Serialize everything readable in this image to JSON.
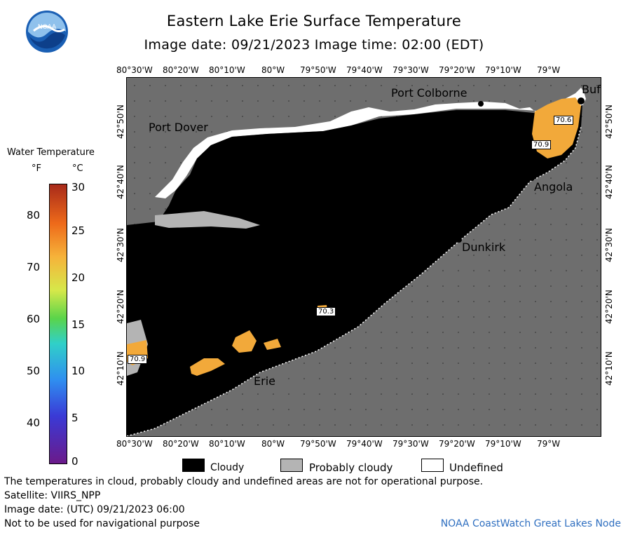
{
  "title": "Eastern Lake Erie Surface Temperature",
  "subtitle": "Image date: 09/21/2023     Image time: 02:00 (EDT)",
  "logo_text": "NOAA",
  "legend": {
    "title": "Water Temperature",
    "unit_f": "°F",
    "unit_c": "°C",
    "f_ticks": [
      "80",
      "70",
      "60",
      "50",
      "40"
    ],
    "c_ticks": [
      "30",
      "25",
      "20",
      "15",
      "10",
      "5",
      "0"
    ]
  },
  "lon_ticks": [
    "80°30'W",
    "80°20'W",
    "80°10'W",
    "80°W",
    "79°50'W",
    "79°40'W",
    "79°30'W",
    "79°20'W",
    "79°10'W",
    "79°W"
  ],
  "lat_ticks": [
    "42°50'N",
    "42°40'N",
    "42°30'N",
    "42°20'N",
    "42°10'N"
  ],
  "places": {
    "port_colborne": "Port Colborne",
    "buffalo": "Buf",
    "port_dover": "Port Dover",
    "angola": "Angola",
    "dunkirk": "Dunkirk",
    "erie": "Erie"
  },
  "temps": {
    "buffalo_a": "70.6",
    "buffalo_b": "70.9",
    "mid_lake": "70.3",
    "west": "70.9"
  },
  "key": {
    "cloudy": "Cloudy",
    "probably_cloudy": "Probably cloudy",
    "undefined": "Undefined",
    "colors": {
      "cloudy": "#000000",
      "probably_cloudy": "#b4b4b4",
      "undefined": "#ffffff",
      "land": "#6e6e6e",
      "warm_water": "#f2a93a"
    }
  },
  "footer": {
    "line1": "The temperatures in cloud, probably cloudy and undefined areas are not for operational purpose.",
    "line2": "Satellite: VIIRS_NPP",
    "line3": "Image date: (UTC) 09/21/2023  06:00",
    "line4": "Not to be used for navigational purpose",
    "credit": "NOAA CoastWatch Great Lakes Node"
  }
}
